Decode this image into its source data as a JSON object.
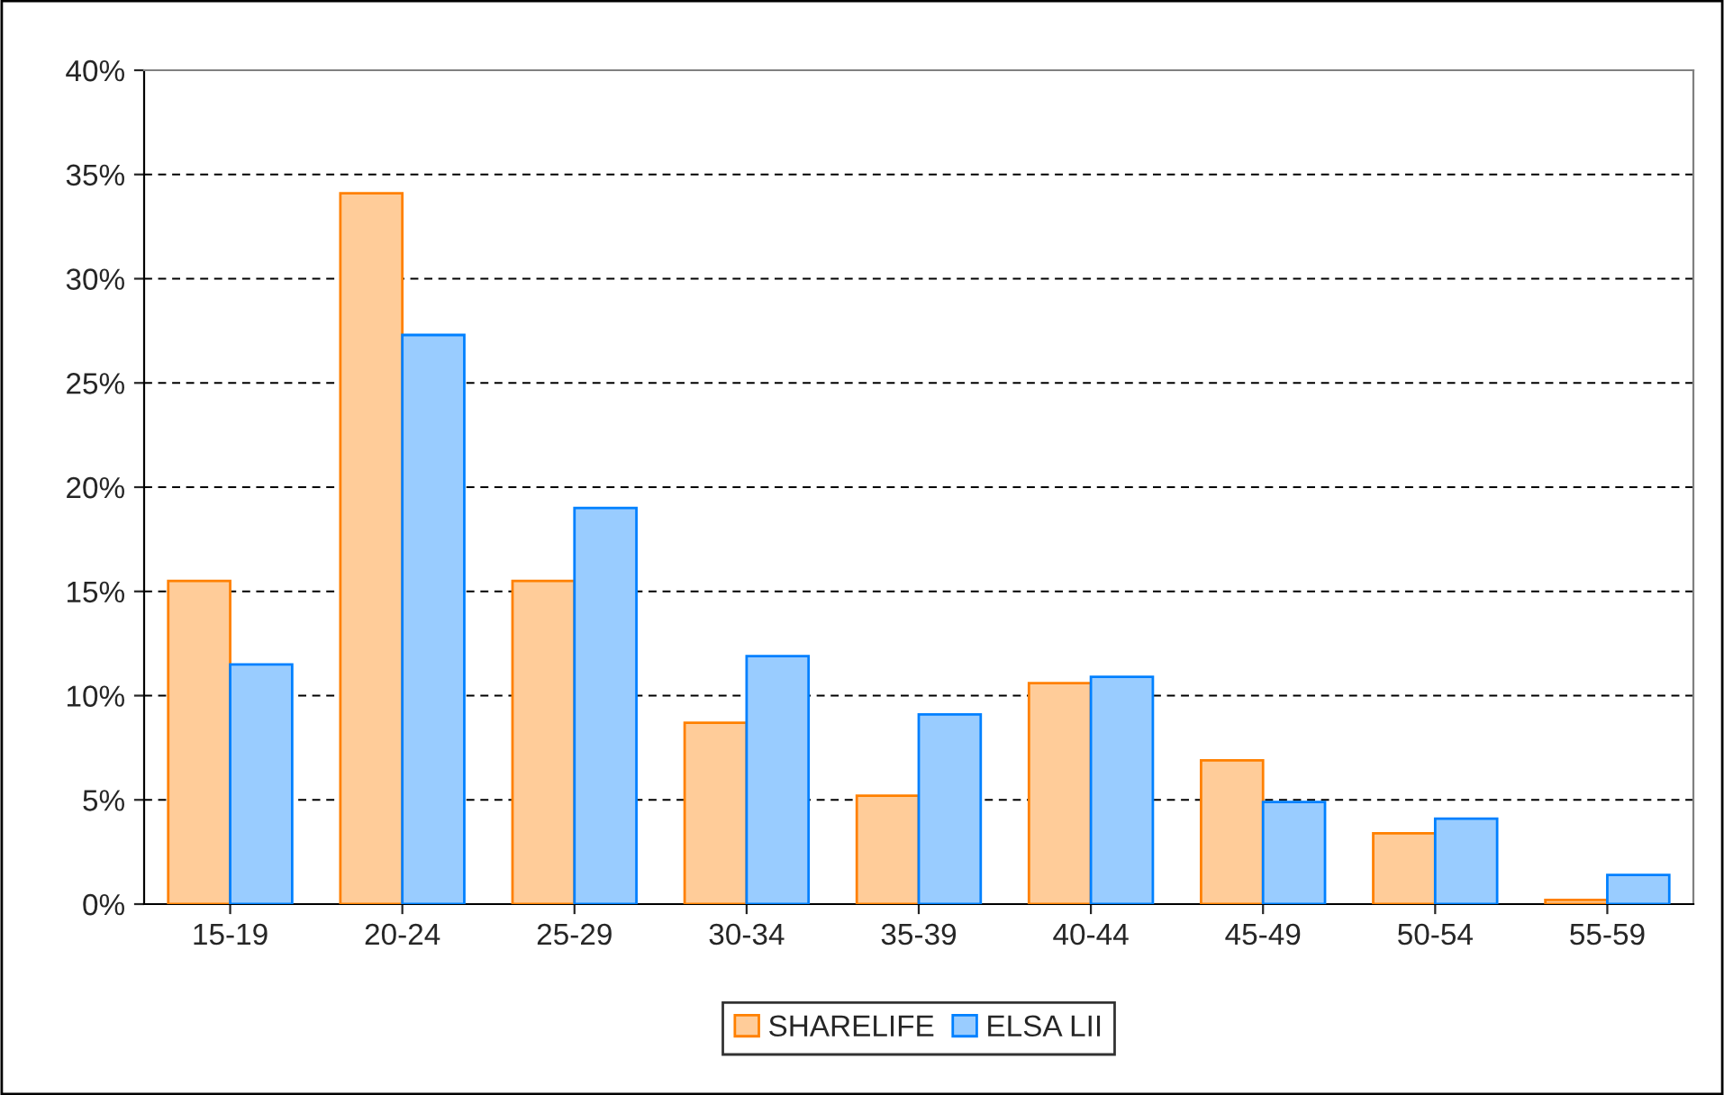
{
  "chart_data": {
    "type": "bar",
    "categories": [
      "15-19",
      "20-24",
      "25-29",
      "30-34",
      "35-39",
      "40-44",
      "45-49",
      "50-54",
      "55-59"
    ],
    "series": [
      {
        "name": "SHARELIFE",
        "color": "#ffcc99",
        "values": [
          15.5,
          34.1,
          15.5,
          8.7,
          5.2,
          10.6,
          6.9,
          3.4,
          0.2
        ]
      },
      {
        "name": "ELSA LII",
        "color": "#99ccff",
        "values": [
          11.5,
          27.3,
          19.0,
          11.9,
          9.1,
          10.9,
          4.9,
          4.1,
          1.4
        ]
      }
    ],
    "ylim": [
      0,
      40
    ],
    "yticks": [
      {
        "value": 0,
        "label": "0%"
      },
      {
        "value": 5,
        "label": "5%"
      },
      {
        "value": 10,
        "label": "10%"
      },
      {
        "value": 15,
        "label": "15%"
      },
      {
        "value": 20,
        "label": "20%"
      },
      {
        "value": 25,
        "label": "25%"
      },
      {
        "value": 30,
        "label": "30%"
      },
      {
        "value": 35,
        "label": "35%"
      },
      {
        "value": 40,
        "label": "40%"
      }
    ],
    "grid": "y",
    "legend": "bottom"
  }
}
